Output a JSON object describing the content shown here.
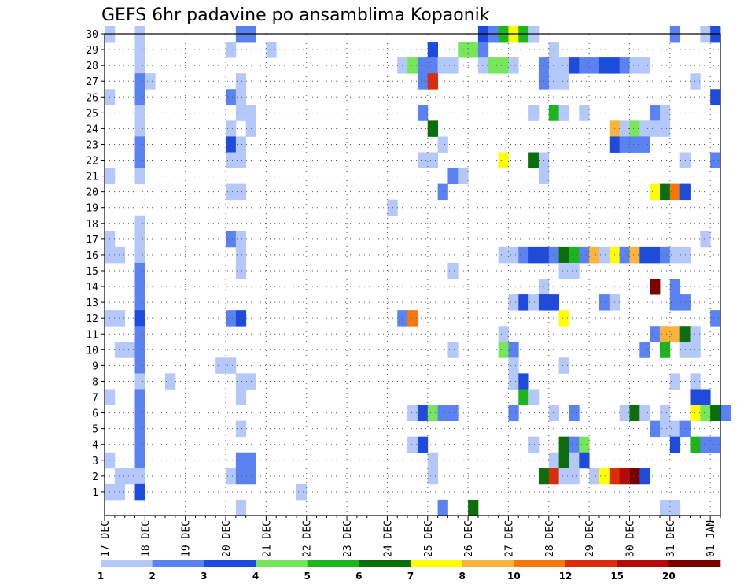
{
  "chart_data": {
    "type": "heatmap",
    "title": "GEFS 6hr padavine po ansamblima Kopaonik",
    "xlabel": "",
    "ylabel": "",
    "x_tick_labels": [
      "17 DEC",
      "18 DEC",
      "19 DEC",
      "20 DEC",
      "21 DEC",
      "22 DEC",
      "23 DEC",
      "24 DEC",
      "25 DEC",
      "26 DEC",
      "27 DEC",
      "28 DEC",
      "29 DEC",
      "30 DEC",
      "31 DEC",
      "01 JAN"
    ],
    "y_tick_labels": [
      "1",
      "2",
      "3",
      "4",
      "5",
      "6",
      "7",
      "8",
      "9",
      "10",
      "11",
      "12",
      "13",
      "14",
      "15",
      "16",
      "17",
      "18",
      "19",
      "20",
      "21",
      "22",
      "23",
      "24",
      "25",
      "26",
      "27",
      "28",
      "29",
      "30"
    ],
    "x_range_days": [
      0,
      15.25
    ],
    "steps_per_day": 4,
    "members": 30,
    "grid": true,
    "legend": {
      "position": "bottom",
      "thresholds": [
        "1",
        "2",
        "3",
        "4",
        "5",
        "6",
        "7",
        "8",
        "10",
        "12",
        "15",
        "20"
      ],
      "colors": [
        "#b4c8fa",
        "#5a82f0",
        "#1e4bdc",
        "#78e65a",
        "#1eb41e",
        "#0a6e0a",
        "#ffff00",
        "#fab43c",
        "#f5780a",
        "#dc2d0a",
        "#b40a0a",
        "#780000"
      ]
    },
    "cells": [
      [
        30,
        0,
        0
      ],
      [
        30,
        3,
        0
      ],
      [
        30,
        13,
        1
      ],
      [
        30,
        14,
        1
      ],
      [
        30,
        37,
        2
      ],
      [
        30,
        38,
        1
      ],
      [
        30,
        39,
        4
      ],
      [
        30,
        40,
        6
      ],
      [
        30,
        41,
        4
      ],
      [
        30,
        42,
        0
      ],
      [
        30,
        56,
        1
      ],
      [
        30,
        59,
        0
      ],
      [
        30,
        60,
        2
      ],
      [
        29,
        3,
        0
      ],
      [
        29,
        12,
        0
      ],
      [
        29,
        16,
        0
      ],
      [
        29,
        32,
        2
      ],
      [
        29,
        35,
        3
      ],
      [
        29,
        36,
        3
      ],
      [
        29,
        37,
        1
      ],
      [
        29,
        44,
        0
      ],
      [
        28,
        3,
        0
      ],
      [
        28,
        29,
        0
      ],
      [
        28,
        30,
        3
      ],
      [
        28,
        31,
        1
      ],
      [
        28,
        32,
        1
      ],
      [
        28,
        33,
        0
      ],
      [
        28,
        34,
        0
      ],
      [
        28,
        37,
        0
      ],
      [
        28,
        38,
        3
      ],
      [
        28,
        39,
        3
      ],
      [
        28,
        40,
        0
      ],
      [
        28,
        43,
        1
      ],
      [
        28,
        44,
        0
      ],
      [
        28,
        45,
        0
      ],
      [
        28,
        46,
        2
      ],
      [
        28,
        47,
        1
      ],
      [
        28,
        48,
        1
      ],
      [
        28,
        49,
        2
      ],
      [
        28,
        50,
        2
      ],
      [
        28,
        51,
        1
      ],
      [
        28,
        52,
        0
      ],
      [
        28,
        53,
        0
      ],
      [
        27,
        3,
        1
      ],
      [
        27,
        4,
        0
      ],
      [
        27,
        13,
        0
      ],
      [
        27,
        31,
        1
      ],
      [
        27,
        32,
        9
      ],
      [
        27,
        43,
        1
      ],
      [
        27,
        44,
        0
      ],
      [
        27,
        45,
        0
      ],
      [
        27,
        58,
        0
      ],
      [
        26,
        0,
        0
      ],
      [
        26,
        3,
        1
      ],
      [
        26,
        12,
        1
      ],
      [
        26,
        13,
        0
      ],
      [
        26,
        60,
        2
      ],
      [
        25,
        3,
        0
      ],
      [
        25,
        13,
        0
      ],
      [
        25,
        14,
        0
      ],
      [
        25,
        31,
        1
      ],
      [
        25,
        42,
        0
      ],
      [
        25,
        44,
        4
      ],
      [
        25,
        45,
        0
      ],
      [
        25,
        47,
        0
      ],
      [
        25,
        54,
        1
      ],
      [
        25,
        55,
        0
      ],
      [
        24,
        3,
        0
      ],
      [
        24,
        12,
        0
      ],
      [
        24,
        14,
        0
      ],
      [
        24,
        32,
        5
      ],
      [
        24,
        50,
        7
      ],
      [
        24,
        51,
        0
      ],
      [
        24,
        52,
        3
      ],
      [
        24,
        53,
        0
      ],
      [
        24,
        54,
        0
      ],
      [
        24,
        55,
        0
      ],
      [
        23,
        3,
        1
      ],
      [
        23,
        12,
        2
      ],
      [
        23,
        13,
        0
      ],
      [
        23,
        33,
        0
      ],
      [
        23,
        50,
        2
      ],
      [
        23,
        51,
        1
      ],
      [
        23,
        52,
        1
      ],
      [
        23,
        53,
        1
      ],
      [
        22,
        3,
        1
      ],
      [
        22,
        12,
        0
      ],
      [
        22,
        13,
        0
      ],
      [
        22,
        31,
        0
      ],
      [
        22,
        32,
        0
      ],
      [
        22,
        39,
        6
      ],
      [
        22,
        42,
        5
      ],
      [
        22,
        43,
        0
      ],
      [
        22,
        57,
        0
      ],
      [
        22,
        60,
        1
      ],
      [
        21,
        0,
        0
      ],
      [
        21,
        3,
        0
      ],
      [
        21,
        34,
        1
      ],
      [
        21,
        35,
        0
      ],
      [
        21,
        43,
        0
      ],
      [
        20,
        12,
        0
      ],
      [
        20,
        13,
        0
      ],
      [
        20,
        33,
        1
      ],
      [
        20,
        54,
        6
      ],
      [
        20,
        55,
        5
      ],
      [
        20,
        56,
        8
      ],
      [
        20,
        57,
        2
      ],
      [
        19,
        28,
        0
      ],
      [
        18,
        3,
        0
      ],
      [
        17,
        0,
        0
      ],
      [
        17,
        3,
        0
      ],
      [
        17,
        12,
        1
      ],
      [
        17,
        13,
        0
      ],
      [
        17,
        59,
        0
      ],
      [
        16,
        0,
        0
      ],
      [
        16,
        1,
        0
      ],
      [
        16,
        3,
        0
      ],
      [
        16,
        13,
        0
      ],
      [
        16,
        39,
        0
      ],
      [
        16,
        40,
        0
      ],
      [
        16,
        41,
        1
      ],
      [
        16,
        42,
        2
      ],
      [
        16,
        43,
        2
      ],
      [
        16,
        44,
        1
      ],
      [
        16,
        45,
        5
      ],
      [
        16,
        46,
        4
      ],
      [
        16,
        47,
        1
      ],
      [
        16,
        48,
        7
      ],
      [
        16,
        49,
        0
      ],
      [
        16,
        50,
        6
      ],
      [
        16,
        51,
        1
      ],
      [
        16,
        52,
        7
      ],
      [
        16,
        53,
        2
      ],
      [
        16,
        54,
        2
      ],
      [
        16,
        55,
        1
      ],
      [
        16,
        56,
        0
      ],
      [
        16,
        57,
        0
      ],
      [
        15,
        3,
        1
      ],
      [
        15,
        13,
        0
      ],
      [
        15,
        34,
        0
      ],
      [
        15,
        45,
        0
      ],
      [
        15,
        46,
        0
      ],
      [
        14,
        3,
        1
      ],
      [
        14,
        43,
        0
      ],
      [
        14,
        54,
        11
      ],
      [
        14,
        56,
        1
      ],
      [
        13,
        3,
        1
      ],
      [
        13,
        40,
        0
      ],
      [
        13,
        41,
        2
      ],
      [
        13,
        42,
        0
      ],
      [
        13,
        43,
        2
      ],
      [
        13,
        44,
        2
      ],
      [
        13,
        49,
        1
      ],
      [
        13,
        50,
        0
      ],
      [
        13,
        56,
        1
      ],
      [
        13,
        57,
        1
      ],
      [
        12,
        0,
        0
      ],
      [
        12,
        1,
        0
      ],
      [
        12,
        3,
        2
      ],
      [
        12,
        12,
        1
      ],
      [
        12,
        13,
        2
      ],
      [
        12,
        29,
        1
      ],
      [
        12,
        30,
        8
      ],
      [
        12,
        45,
        6
      ],
      [
        12,
        60,
        1
      ],
      [
        11,
        3,
        1
      ],
      [
        11,
        39,
        0
      ],
      [
        11,
        54,
        1
      ],
      [
        11,
        55,
        7
      ],
      [
        11,
        56,
        7
      ],
      [
        11,
        57,
        5
      ],
      [
        11,
        58,
        0
      ],
      [
        10,
        1,
        0
      ],
      [
        10,
        2,
        0
      ],
      [
        10,
        3,
        1
      ],
      [
        10,
        34,
        0
      ],
      [
        10,
        39,
        3
      ],
      [
        10,
        40,
        1
      ],
      [
        10,
        53,
        1
      ],
      [
        10,
        55,
        4
      ],
      [
        10,
        57,
        0
      ],
      [
        10,
        58,
        0
      ],
      [
        9,
        3,
        1
      ],
      [
        9,
        11,
        0
      ],
      [
        9,
        12,
        0
      ],
      [
        9,
        40,
        0
      ],
      [
        9,
        45,
        0
      ],
      [
        8,
        3,
        0
      ],
      [
        8,
        6,
        0
      ],
      [
        8,
        13,
        0
      ],
      [
        8,
        14,
        0
      ],
      [
        8,
        40,
        0
      ],
      [
        8,
        41,
        2
      ],
      [
        8,
        56,
        0
      ],
      [
        8,
        58,
        0
      ],
      [
        7,
        0,
        0
      ],
      [
        7,
        3,
        1
      ],
      [
        7,
        13,
        0
      ],
      [
        7,
        41,
        4
      ],
      [
        7,
        42,
        0
      ],
      [
        7,
        58,
        2
      ],
      [
        7,
        59,
        2
      ],
      [
        6,
        3,
        1
      ],
      [
        6,
        30,
        0
      ],
      [
        6,
        31,
        2
      ],
      [
        6,
        32,
        3
      ],
      [
        6,
        33,
        1
      ],
      [
        6,
        34,
        1
      ],
      [
        6,
        40,
        1
      ],
      [
        6,
        44,
        0
      ],
      [
        6,
        46,
        1
      ],
      [
        6,
        51,
        0
      ],
      [
        6,
        52,
        5
      ],
      [
        6,
        53,
        0
      ],
      [
        6,
        55,
        0
      ],
      [
        6,
        58,
        6
      ],
      [
        6,
        59,
        3
      ],
      [
        6,
        60,
        5
      ],
      [
        6,
        61,
        1
      ],
      [
        5,
        3,
        1
      ],
      [
        5,
        13,
        0
      ],
      [
        5,
        54,
        1
      ],
      [
        5,
        55,
        0
      ],
      [
        5,
        56,
        0
      ],
      [
        5,
        57,
        1
      ],
      [
        4,
        3,
        1
      ],
      [
        4,
        30,
        0
      ],
      [
        4,
        31,
        2
      ],
      [
        4,
        42,
        0
      ],
      [
        4,
        45,
        5
      ],
      [
        4,
        46,
        1
      ],
      [
        4,
        47,
        3
      ],
      [
        4,
        56,
        2
      ],
      [
        4,
        58,
        4
      ],
      [
        4,
        59,
        1
      ],
      [
        4,
        60,
        1
      ],
      [
        3,
        0,
        0
      ],
      [
        3,
        3,
        1
      ],
      [
        3,
        13,
        1
      ],
      [
        3,
        14,
        1
      ],
      [
        3,
        32,
        0
      ],
      [
        3,
        44,
        0
      ],
      [
        3,
        45,
        5
      ],
      [
        3,
        46,
        0
      ],
      [
        3,
        47,
        2
      ],
      [
        2,
        1,
        0
      ],
      [
        2,
        2,
        0
      ],
      [
        2,
        3,
        0
      ],
      [
        2,
        12,
        0
      ],
      [
        2,
        13,
        1
      ],
      [
        2,
        14,
        1
      ],
      [
        2,
        32,
        0
      ],
      [
        2,
        43,
        5
      ],
      [
        2,
        44,
        9
      ],
      [
        2,
        45,
        0
      ],
      [
        2,
        46,
        0
      ],
      [
        2,
        48,
        0
      ],
      [
        2,
        49,
        6
      ],
      [
        2,
        50,
        9
      ],
      [
        2,
        51,
        10
      ],
      [
        2,
        52,
        11
      ],
      [
        2,
        53,
        2
      ],
      [
        1,
        0,
        0
      ],
      [
        1,
        1,
        0
      ],
      [
        1,
        3,
        2
      ],
      [
        1,
        19,
        0
      ],
      [
        0,
        13,
        0
      ],
      [
        0,
        33,
        1
      ],
      [
        0,
        36,
        5
      ],
      [
        0,
        55,
        0
      ],
      [
        0,
        56,
        0
      ]
    ]
  }
}
